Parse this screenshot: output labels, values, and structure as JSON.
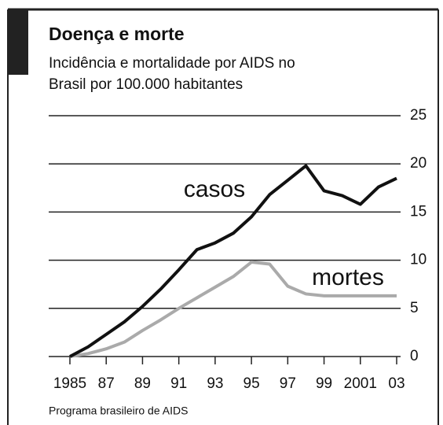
{
  "chart_data": {
    "type": "line",
    "title": "Doença e morte",
    "subtitle": [
      "Incidência e mortalidade por AIDS no",
      "Brasil por 100.000 habitantes"
    ],
    "source": "Programa brasileiro de AIDS",
    "x": [
      1985,
      1986,
      1987,
      1988,
      1989,
      1990,
      1991,
      1992,
      1993,
      1994,
      1995,
      1996,
      1997,
      1998,
      1999,
      2000,
      2001,
      2002,
      2003
    ],
    "series": [
      {
        "name": "casos",
        "color": "#111111",
        "values": [
          0,
          1,
          2.3,
          3.6,
          5.2,
          7,
          9,
          11.1,
          11.8,
          12.8,
          14.5,
          16.8,
          18.3,
          19.8,
          17.2,
          16.7,
          15.8,
          17.6,
          18.5
        ]
      },
      {
        "name": "mortes",
        "color": "#aaaaaa",
        "values": [
          0,
          0.3,
          0.8,
          1.5,
          2.7,
          3.8,
          5,
          6.1,
          7.2,
          8.3,
          9.8,
          9.6,
          7.3,
          6.5,
          6.3,
          6.3,
          6.3,
          6.3,
          6.3
        ]
      }
    ],
    "xlim": [
      1985,
      2003
    ],
    "xticks": [
      1985,
      {
        "value": 1987,
        "label": "87"
      },
      {
        "value": 1989,
        "label": "89"
      },
      {
        "value": 1991,
        "label": "91"
      },
      {
        "value": 1993,
        "label": "93"
      },
      {
        "value": 1995,
        "label": "95"
      },
      {
        "value": 1997,
        "label": "97"
      },
      {
        "value": 1999,
        "label": "99"
      },
      2001,
      {
        "value": 2003,
        "label": "03"
      }
    ],
    "ylim": [
      0,
      25
    ],
    "yticks": [
      0,
      5,
      10,
      15,
      20,
      25
    ],
    "grid": true
  }
}
